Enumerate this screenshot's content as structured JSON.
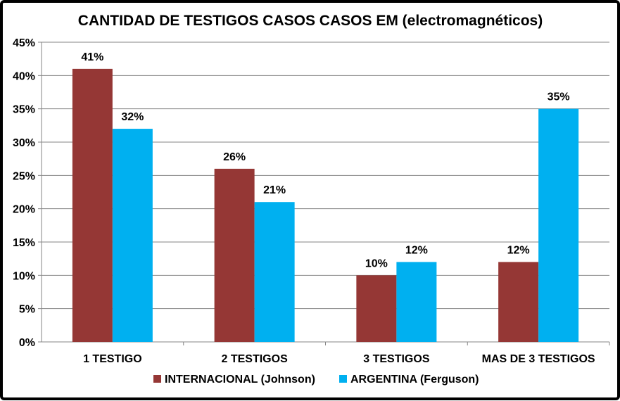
{
  "chart_data": {
    "type": "bar",
    "title": "CANTIDAD DE TESTIGOS CASOS CASOS EM (electromagnéticos)",
    "xlabel": "",
    "ylabel": "",
    "categories": [
      "1 TESTIGO",
      "2 TESTIGOS",
      "3 TESTIGOS",
      "MAS DE 3 TESTIGOS"
    ],
    "series": [
      {
        "name": "INTERNACIONAL (Johnson)",
        "color": "#953735",
        "values": [
          41,
          26,
          10,
          12
        ],
        "labels": [
          "41%",
          "26%",
          "10%",
          "12%"
        ]
      },
      {
        "name": "ARGENTINA (Ferguson)",
        "color": "#00B0F0",
        "values": [
          32,
          21,
          12,
          35
        ],
        "labels": [
          "32%",
          "21%",
          "12%",
          "35%"
        ]
      }
    ],
    "ylim": [
      0,
      45
    ],
    "yticks": [
      0,
      5,
      10,
      15,
      20,
      25,
      30,
      35,
      40,
      45
    ],
    "ytick_labels": [
      "0%",
      "5%",
      "10%",
      "15%",
      "20%",
      "25%",
      "30%",
      "35%",
      "40%",
      "45%"
    ],
    "grid": true,
    "gridline_color": "#868686",
    "legend_position": "bottom"
  }
}
